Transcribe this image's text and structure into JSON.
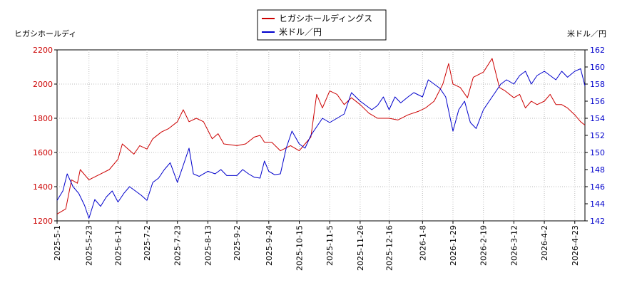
{
  "chart_data": {
    "type": "line",
    "title": "",
    "legend": {
      "placement": "top-center",
      "entries": [
        "ヒガシホールディングス",
        "米ドル／円"
      ]
    },
    "left_axis": {
      "label": "ヒガシホールディ",
      "range": [
        1200,
        2200
      ],
      "ticks": [
        "1200",
        "1400",
        "1600",
        "1800",
        "2000",
        "2200"
      ],
      "color": "#cc0000"
    },
    "right_axis": {
      "label": "米ドル／円",
      "range": [
        142,
        162
      ],
      "ticks": [
        "142",
        "144",
        "146",
        "148",
        "150",
        "152",
        "154",
        "156",
        "158",
        "160",
        "162"
      ],
      "color": "#0000cc"
    },
    "x_axis": {
      "ticks": [
        "2025-5-1",
        "2025-5-23",
        "2025-6-12",
        "2025-7-2",
        "2025-7-23",
        "2025-8-13",
        "2025-9-2",
        "2025-9-24",
        "2025-10-15",
        "2025-11-5",
        "2025-11-26",
        "2025-12-16",
        "2026-1-8",
        "2026-1-29",
        "2026-2-19",
        "2026-3-12",
        "2026-4-2",
        "2026-4-23"
      ]
    },
    "grid": true,
    "series": [
      {
        "name": "ヒガシホールディングス",
        "color": "#cc0000",
        "axis": "left",
        "points": [
          [
            "2025-05-01",
            1240
          ],
          [
            "2025-05-07",
            1270
          ],
          [
            "2025-05-11",
            1440
          ],
          [
            "2025-05-15",
            1420
          ],
          [
            "2025-05-17",
            1500
          ],
          [
            "2025-05-23",
            1440
          ],
          [
            "2025-05-30",
            1470
          ],
          [
            "2025-06-06",
            1500
          ],
          [
            "2025-06-12",
            1560
          ],
          [
            "2025-06-15",
            1650
          ],
          [
            "2025-06-19",
            1620
          ],
          [
            "2025-06-23",
            1590
          ],
          [
            "2025-06-27",
            1640
          ],
          [
            "2025-07-02",
            1620
          ],
          [
            "2025-07-06",
            1680
          ],
          [
            "2025-07-12",
            1720
          ],
          [
            "2025-07-17",
            1740
          ],
          [
            "2025-07-23",
            1780
          ],
          [
            "2025-07-27",
            1850
          ],
          [
            "2025-07-31",
            1780
          ],
          [
            "2025-08-05",
            1800
          ],
          [
            "2025-08-10",
            1780
          ],
          [
            "2025-08-16",
            1680
          ],
          [
            "2025-08-20",
            1710
          ],
          [
            "2025-08-24",
            1650
          ],
          [
            "2025-09-02",
            1640
          ],
          [
            "2025-09-08",
            1650
          ],
          [
            "2025-09-14",
            1690
          ],
          [
            "2025-09-18",
            1700
          ],
          [
            "2025-09-21",
            1660
          ],
          [
            "2025-09-26",
            1660
          ],
          [
            "2025-10-02",
            1610
          ],
          [
            "2025-10-09",
            1640
          ],
          [
            "2025-10-15",
            1610
          ],
          [
            "2025-10-19",
            1650
          ],
          [
            "2025-10-23",
            1690
          ],
          [
            "2025-10-27",
            1940
          ],
          [
            "2025-10-31",
            1860
          ],
          [
            "2025-11-05",
            1960
          ],
          [
            "2025-11-10",
            1940
          ],
          [
            "2025-11-15",
            1880
          ],
          [
            "2025-11-20",
            1920
          ],
          [
            "2025-11-26",
            1880
          ],
          [
            "2025-12-02",
            1830
          ],
          [
            "2025-12-08",
            1800
          ],
          [
            "2025-12-16",
            1800
          ],
          [
            "2025-12-22",
            1790
          ],
          [
            "2025-12-29",
            1820
          ],
          [
            "2026-01-05",
            1840
          ],
          [
            "2026-01-10",
            1860
          ],
          [
            "2026-01-16",
            1900
          ],
          [
            "2026-01-22",
            2000
          ],
          [
            "2026-01-26",
            2120
          ],
          [
            "2026-01-29",
            2000
          ],
          [
            "2026-02-03",
            1980
          ],
          [
            "2026-02-08",
            1920
          ],
          [
            "2026-02-12",
            2040
          ],
          [
            "2026-02-19",
            2070
          ],
          [
            "2026-02-25",
            2150
          ],
          [
            "2026-03-02",
            1980
          ],
          [
            "2026-03-06",
            1960
          ],
          [
            "2026-03-12",
            1920
          ],
          [
            "2026-03-16",
            1940
          ],
          [
            "2026-03-20",
            1860
          ],
          [
            "2026-03-24",
            1900
          ],
          [
            "2026-03-28",
            1880
          ],
          [
            "2026-04-02",
            1900
          ],
          [
            "2026-04-06",
            1940
          ],
          [
            "2026-04-10",
            1880
          ],
          [
            "2026-04-14",
            1880
          ],
          [
            "2026-04-18",
            1860
          ],
          [
            "2026-04-23",
            1820
          ],
          [
            "2026-04-27",
            1780
          ],
          [
            "2026-04-30",
            1760
          ]
        ]
      },
      {
        "name": "米ドル／円",
        "color": "#0000cc",
        "axis": "right",
        "points": [
          [
            "2025-05-01",
            144.4
          ],
          [
            "2025-05-05",
            145.5
          ],
          [
            "2025-05-08",
            147.5
          ],
          [
            "2025-05-12",
            146.0
          ],
          [
            "2025-05-16",
            145.2
          ],
          [
            "2025-05-20",
            143.8
          ],
          [
            "2025-05-23",
            142.3
          ],
          [
            "2025-05-27",
            144.5
          ],
          [
            "2025-05-31",
            143.7
          ],
          [
            "2025-06-04",
            144.8
          ],
          [
            "2025-06-08",
            145.5
          ],
          [
            "2025-06-12",
            144.2
          ],
          [
            "2025-06-16",
            145.2
          ],
          [
            "2025-06-20",
            146.0
          ],
          [
            "2025-06-24",
            145.5
          ],
          [
            "2025-06-28",
            145.0
          ],
          [
            "2025-07-02",
            144.4
          ],
          [
            "2025-07-06",
            146.5
          ],
          [
            "2025-07-10",
            147.0
          ],
          [
            "2025-07-14",
            148.0
          ],
          [
            "2025-07-18",
            148.8
          ],
          [
            "2025-07-23",
            146.5
          ],
          [
            "2025-07-27",
            148.5
          ],
          [
            "2025-07-31",
            150.5
          ],
          [
            "2025-08-03",
            147.5
          ],
          [
            "2025-08-07",
            147.2
          ],
          [
            "2025-08-13",
            147.8
          ],
          [
            "2025-08-18",
            147.5
          ],
          [
            "2025-08-22",
            148.0
          ],
          [
            "2025-08-26",
            147.3
          ],
          [
            "2025-09-02",
            147.3
          ],
          [
            "2025-09-06",
            148.0
          ],
          [
            "2025-09-10",
            147.5
          ],
          [
            "2025-09-14",
            147.1
          ],
          [
            "2025-09-18",
            147.0
          ],
          [
            "2025-09-21",
            149.0
          ],
          [
            "2025-09-24",
            147.8
          ],
          [
            "2025-09-28",
            147.4
          ],
          [
            "2025-10-02",
            147.5
          ],
          [
            "2025-10-06",
            150.5
          ],
          [
            "2025-10-10",
            152.5
          ],
          [
            "2025-10-15",
            151.0
          ],
          [
            "2025-10-19",
            150.5
          ],
          [
            "2025-10-23",
            152.0
          ],
          [
            "2025-10-27",
            153.0
          ],
          [
            "2025-10-31",
            154.0
          ],
          [
            "2025-11-05",
            153.5
          ],
          [
            "2025-11-10",
            154.0
          ],
          [
            "2025-11-15",
            154.5
          ],
          [
            "2025-11-20",
            157.0
          ],
          [
            "2025-11-26",
            156.0
          ],
          [
            "2025-11-30",
            155.5
          ],
          [
            "2025-12-04",
            155.0
          ],
          [
            "2025-12-08",
            155.5
          ],
          [
            "2025-12-12",
            156.5
          ],
          [
            "2025-12-16",
            155.0
          ],
          [
            "2025-12-20",
            156.5
          ],
          [
            "2025-12-24",
            155.8
          ],
          [
            "2025-12-29",
            156.5
          ],
          [
            "2026-01-02",
            157.0
          ],
          [
            "2026-01-08",
            156.5
          ],
          [
            "2026-01-12",
            158.5
          ],
          [
            "2026-01-16",
            158.0
          ],
          [
            "2026-01-20",
            157.5
          ],
          [
            "2026-01-24",
            156.5
          ],
          [
            "2026-01-29",
            152.5
          ],
          [
            "2026-02-02",
            155.0
          ],
          [
            "2026-02-06",
            156.0
          ],
          [
            "2026-02-10",
            153.5
          ],
          [
            "2026-02-14",
            152.8
          ],
          [
            "2026-02-19",
            155.0
          ],
          [
            "2026-02-23",
            156.0
          ],
          [
            "2026-02-27",
            157.0
          ],
          [
            "2026-03-03",
            158.0
          ],
          [
            "2026-03-07",
            158.5
          ],
          [
            "2026-03-12",
            158.0
          ],
          [
            "2026-03-16",
            159.0
          ],
          [
            "2026-03-20",
            159.5
          ],
          [
            "2026-03-24",
            158.0
          ],
          [
            "2026-03-28",
            159.0
          ],
          [
            "2026-04-02",
            159.5
          ],
          [
            "2026-04-06",
            159.0
          ],
          [
            "2026-04-10",
            158.5
          ],
          [
            "2026-04-14",
            159.5
          ],
          [
            "2026-04-18",
            158.8
          ],
          [
            "2026-04-23",
            159.5
          ],
          [
            "2026-04-27",
            159.8
          ],
          [
            "2026-04-30",
            157.8
          ]
        ]
      }
    ]
  }
}
